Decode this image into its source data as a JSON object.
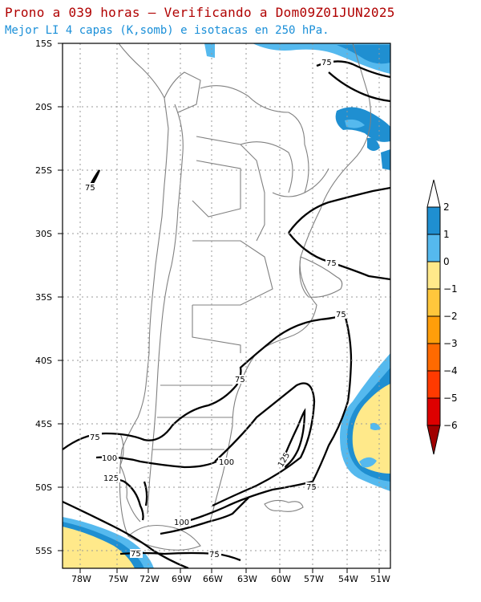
{
  "title": "Prono a 039 horas — Verificando a Dom09Z01JUN2025",
  "subtitle": "Mejor LI 4 capas (K,somb) e isotacas en 250 hPa.",
  "lat_labels": [
    "15S",
    "20S",
    "25S",
    "30S",
    "35S",
    "40S",
    "45S",
    "50S",
    "55S"
  ],
  "lon_labels": [
    "78W",
    "75W",
    "72W",
    "69W",
    "66W",
    "63W",
    "60W",
    "57W",
    "54W",
    "51W"
  ],
  "contour_labels": [
    "75",
    "75",
    "75",
    "75",
    "75",
    "75",
    "100",
    "125",
    "100",
    "125",
    "75",
    "100",
    "75",
    "75"
  ],
  "legend": {
    "labels": [
      "2",
      "1",
      "0",
      "−1",
      "−2",
      "−3",
      "−4",
      "−5",
      "−6"
    ],
    "colors": [
      "#1f8fd1",
      "#55b9ee",
      "#ffe98a",
      "#ffc73c",
      "#ff9e0a",
      "#ff6a00",
      "#ff3a00",
      "#dd0000",
      "#a00000"
    ]
  },
  "colors": {
    "ocean_blue": "#55b9ee",
    "deep_blue": "#1f8fd1",
    "yellow": "#ffe98a",
    "border": "#808080",
    "isotach": "#000000"
  }
}
